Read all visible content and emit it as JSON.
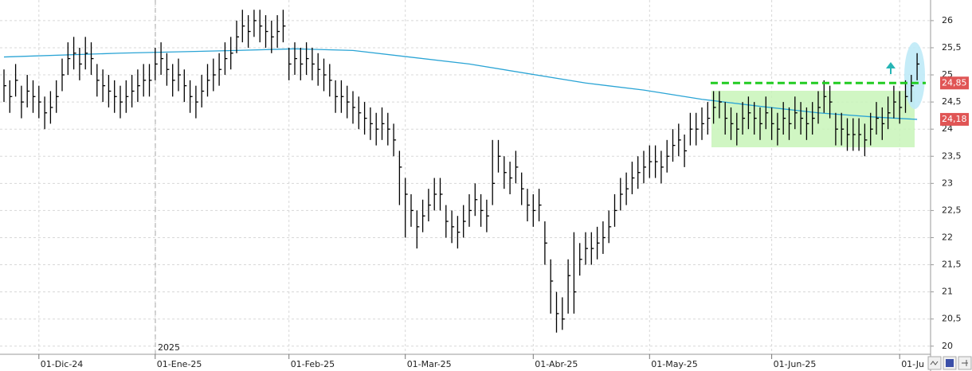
{
  "chart_data": {
    "type": "ohlc",
    "xticks": [
      {
        "value": 6,
        "label": "01-Dic-24"
      },
      {
        "value": 26,
        "label": "01-Ene-25"
      },
      {
        "value": 49,
        "label": "01-Feb-25"
      },
      {
        "value": 69,
        "label": "01-Mar-25"
      },
      {
        "value": 91,
        "label": "01-Abr-25"
      },
      {
        "value": 111,
        "label": "01-May-25"
      },
      {
        "value": 132,
        "label": "01-Jun-25"
      },
      {
        "value": 154,
        "label": "01-Ju"
      }
    ],
    "xlim": [
      -0.685,
      159.315
    ],
    "ylim": [
      19.85,
      26.38
    ],
    "yticks": [
      20,
      {
        "value": 20.5,
        "label": "20,5"
      },
      21,
      {
        "value": 21.5,
        "label": "21,5"
      },
      22,
      {
        "value": 22.5,
        "label": "22,5"
      },
      23,
      {
        "value": 23.5,
        "label": "23,5"
      },
      24,
      {
        "value": 24.5,
        "label": "24,5"
      },
      25,
      {
        "value": 25.5,
        "label": "25,5"
      },
      26
    ],
    "grid": true,
    "year_label": "2025",
    "bars": {
      "color": "#000000",
      "high": [
        25.1,
        24.9,
        25.2,
        24.8,
        25.0,
        24.9,
        24.8,
        24.6,
        24.7,
        24.9,
        25.3,
        25.6,
        25.7,
        25.5,
        25.7,
        25.6,
        25.2,
        25.1,
        25.0,
        24.9,
        24.8,
        24.9,
        25.0,
        25.1,
        25.2,
        25.2,
        25.5,
        25.6,
        25.4,
        25.2,
        25.3,
        25.1,
        24.9,
        24.8,
        25.0,
        25.2,
        25.3,
        25.4,
        25.6,
        25.7,
        26.0,
        26.2,
        26.1,
        26.2,
        26.2,
        26.1,
        26.0,
        26.1,
        26.2,
        25.5,
        25.6,
        25.5,
        25.6,
        25.5,
        25.4,
        25.3,
        25.2,
        24.9,
        24.9,
        24.8,
        24.7,
        24.6,
        24.5,
        24.4,
        24.3,
        24.4,
        24.3,
        24.1,
        23.6,
        23.1,
        22.8,
        22.5,
        22.7,
        22.9,
        23.1,
        23.1,
        22.6,
        22.5,
        22.4,
        22.6,
        22.8,
        23.0,
        22.8,
        22.7,
        23.8,
        23.8,
        23.5,
        23.4,
        23.6,
        23.2,
        22.9,
        22.8,
        22.9,
        22.3,
        21.6,
        21.0,
        20.9,
        21.6,
        22.1,
        21.9,
        22.1,
        22.1,
        22.2,
        22.3,
        22.5,
        22.8,
        23.1,
        23.2,
        23.4,
        23.5,
        23.6,
        23.7,
        23.7,
        23.6,
        23.8,
        24.0,
        24.1,
        23.9,
        24.3,
        24.3,
        24.4,
        24.5,
        24.7,
        24.7,
        24.5,
        24.4,
        24.3,
        24.5,
        24.6,
        24.5,
        24.4,
        24.6,
        24.4,
        24.3,
        24.5,
        24.4,
        24.6,
        24.5,
        24.4,
        24.5,
        24.7,
        24.9,
        24.8,
        24.3,
        24.3,
        24.2,
        24.2,
        24.2,
        24.1,
        24.3,
        24.5,
        24.4,
        24.6,
        24.8,
        24.7,
        24.9,
        25.0,
        25.4
      ],
      "low": [
        24.5,
        24.3,
        24.6,
        24.2,
        24.4,
        24.3,
        24.2,
        24.0,
        24.1,
        24.3,
        24.7,
        25.0,
        25.1,
        24.9,
        25.1,
        25.0,
        24.6,
        24.5,
        24.4,
        24.3,
        24.2,
        24.3,
        24.4,
        24.5,
        24.6,
        24.6,
        24.9,
        25.0,
        24.8,
        24.6,
        24.7,
        24.5,
        24.3,
        24.2,
        24.4,
        24.6,
        24.7,
        24.8,
        25.0,
        25.1,
        25.4,
        25.6,
        25.5,
        25.7,
        25.6,
        25.5,
        25.4,
        25.5,
        25.6,
        24.9,
        25.0,
        24.9,
        25.0,
        24.9,
        24.8,
        24.7,
        24.6,
        24.3,
        24.3,
        24.2,
        24.1,
        24.0,
        23.9,
        23.8,
        23.7,
        23.8,
        23.7,
        23.5,
        22.6,
        22.0,
        22.2,
        21.8,
        22.1,
        22.3,
        22.5,
        22.5,
        22.0,
        21.9,
        21.8,
        22.0,
        22.2,
        22.4,
        22.2,
        22.1,
        22.6,
        23.2,
        22.9,
        22.8,
        23.0,
        22.6,
        22.3,
        22.2,
        22.3,
        21.5,
        20.6,
        20.25,
        20.3,
        20.6,
        20.6,
        21.3,
        21.5,
        21.5,
        21.6,
        21.7,
        21.9,
        22.2,
        22.5,
        22.6,
        22.8,
        22.9,
        23.0,
        23.1,
        23.1,
        23.0,
        23.2,
        23.4,
        23.5,
        23.3,
        23.7,
        23.7,
        23.8,
        23.9,
        24.1,
        24.2,
        23.9,
        23.8,
        23.7,
        23.9,
        24.0,
        23.9,
        23.8,
        24.0,
        23.8,
        23.7,
        23.9,
        23.8,
        24.0,
        23.9,
        23.8,
        23.9,
        24.1,
        24.3,
        24.2,
        23.7,
        23.7,
        23.6,
        23.6,
        23.6,
        23.5,
        23.7,
        23.9,
        23.8,
        24.0,
        24.2,
        24.1,
        24.3,
        24.5,
        24.9
      ],
      "close": [
        24.8,
        24.6,
        24.9,
        24.5,
        24.7,
        24.6,
        24.5,
        24.3,
        24.4,
        24.6,
        25.0,
        25.3,
        25.4,
        25.2,
        25.4,
        25.3,
        24.9,
        24.8,
        24.7,
        24.6,
        24.5,
        24.6,
        24.7,
        24.8,
        24.9,
        24.9,
        25.2,
        25.3,
        25.1,
        24.9,
        25.0,
        24.8,
        24.6,
        24.5,
        24.7,
        24.9,
        25.0,
        25.1,
        25.3,
        25.4,
        25.7,
        25.9,
        25.8,
        26.0,
        25.9,
        25.8,
        25.7,
        25.8,
        25.9,
        25.2,
        25.3,
        25.2,
        25.3,
        25.2,
        25.1,
        25.0,
        24.9,
        24.6,
        24.6,
        24.5,
        24.4,
        24.3,
        24.2,
        24.1,
        24.0,
        24.1,
        24.0,
        23.8,
        23.3,
        22.8,
        22.5,
        22.2,
        22.4,
        22.6,
        22.8,
        22.8,
        22.3,
        22.2,
        22.1,
        22.3,
        22.5,
        22.7,
        22.5,
        22.4,
        23.0,
        23.5,
        23.2,
        23.1,
        23.3,
        22.9,
        22.6,
        22.5,
        22.6,
        21.9,
        21.2,
        20.6,
        20.5,
        21.3,
        21.0,
        21.6,
        21.8,
        21.8,
        21.9,
        22.0,
        22.2,
        22.5,
        22.8,
        22.9,
        23.1,
        23.2,
        23.3,
        23.4,
        23.4,
        23.3,
        23.5,
        23.7,
        23.8,
        23.6,
        24.0,
        24.0,
        24.1,
        24.2,
        24.4,
        24.5,
        24.2,
        24.1,
        24.0,
        24.2,
        24.3,
        24.2,
        24.1,
        24.3,
        24.1,
        24.0,
        24.2,
        24.1,
        24.3,
        24.2,
        24.1,
        24.2,
        24.4,
        24.6,
        24.5,
        24.0,
        24.0,
        23.9,
        23.9,
        23.9,
        23.8,
        24.0,
        24.2,
        24.1,
        24.3,
        24.5,
        24.4,
        24.6,
        24.8,
        25.2
      ]
    },
    "moving_average": {
      "color": "#2aa4d5",
      "x": [
        0,
        20,
        40,
        50,
        60,
        80,
        100,
        110,
        120,
        130,
        140,
        150,
        157
      ],
      "values": [
        25.33,
        25.4,
        25.45,
        25.48,
        25.45,
        25.2,
        24.85,
        24.72,
        24.55,
        24.42,
        24.3,
        24.22,
        24.18
      ]
    },
    "levels": [
      {
        "value": 24.85,
        "label": "24,85",
        "color": "#22cc22",
        "from": 121.5
      },
      {
        "value": 24.18,
        "label": "24,18",
        "color": "#2aa4d5"
      }
    ]
  }
}
